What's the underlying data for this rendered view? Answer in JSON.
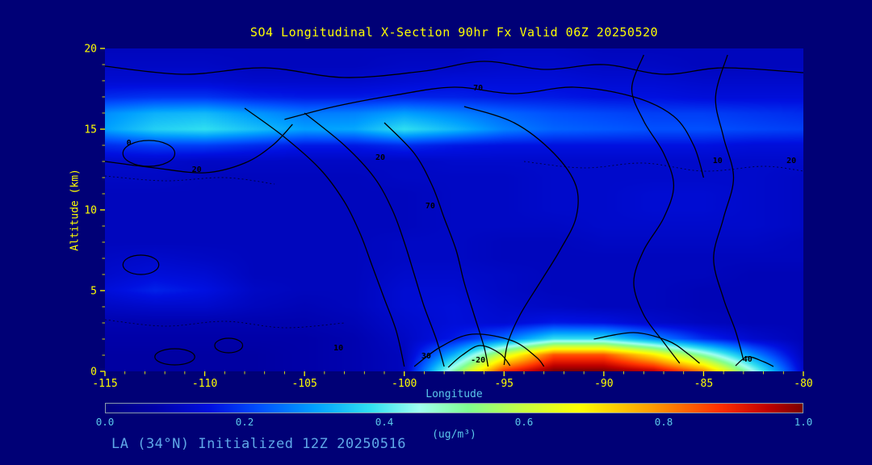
{
  "title": "SO4 Longitudinal X-Section 90hr  Fx Valid 06Z 20250520",
  "footer": "LA (34°N) Initialized 12Z 20250516",
  "axes": {
    "x": {
      "label": "Longitude",
      "min": -115,
      "max": -80,
      "ticks": [
        -115,
        -110,
        -105,
        -100,
        -95,
        -90,
        -85,
        -80
      ],
      "minor_step": 1
    },
    "y": {
      "label": "Altitude (km)",
      "min": 0,
      "max": 20,
      "ticks": [
        0,
        5,
        10,
        15,
        20
      ],
      "minor_step": 1
    }
  },
  "colorbar": {
    "label": "(ug/m³)",
    "ticks": [
      "0.0",
      "0.2",
      "0.4",
      "0.6",
      "0.8",
      "1.0"
    ],
    "min": 0.0,
    "max": 1.0
  },
  "colors": {
    "background": "#000076",
    "title_text": "#FFFF00",
    "axis_text": "#FFFF00",
    "cyan_text": "#5BC8EA",
    "footer_text": "#5FA8E8",
    "contour": "#000000"
  },
  "chart_data": {
    "type": "heatmap",
    "title": "SO4 Longitudinal X-Section 90hr  Fx Valid 06Z 20250520",
    "xlabel": "Longitude",
    "ylabel": "Altitude (km)",
    "unit": "(ug/m³)",
    "x_range": [
      -115,
      -80
    ],
    "y_range": [
      0,
      20
    ],
    "value_range": [
      0,
      1
    ],
    "x": [
      -115,
      -112.5,
      -110,
      -107.5,
      -105,
      -102.5,
      -100,
      -97.5,
      -95,
      -92.5,
      -90,
      -87.5,
      -85,
      -82.5,
      -80
    ],
    "y": [
      0,
      1,
      2,
      3,
      4,
      5,
      6,
      7,
      8,
      9,
      10,
      11,
      12,
      13,
      14,
      15,
      16,
      17,
      18,
      19,
      20
    ],
    "row_order": "bottom-to-top",
    "values": [
      [
        0.06,
        0.06,
        0.06,
        0.06,
        0.07,
        0.08,
        0.1,
        0.5,
        0.88,
        1.0,
        1.0,
        0.95,
        0.8,
        0.45,
        0.12
      ],
      [
        0.06,
        0.06,
        0.06,
        0.06,
        0.07,
        0.08,
        0.1,
        0.32,
        0.62,
        0.85,
        0.85,
        0.7,
        0.5,
        0.28,
        0.1
      ],
      [
        0.07,
        0.07,
        0.07,
        0.07,
        0.07,
        0.08,
        0.11,
        0.16,
        0.25,
        0.38,
        0.38,
        0.28,
        0.18,
        0.12,
        0.09
      ],
      [
        0.08,
        0.08,
        0.08,
        0.08,
        0.08,
        0.09,
        0.12,
        0.14,
        0.13,
        0.16,
        0.15,
        0.12,
        0.1,
        0.09,
        0.09
      ],
      [
        0.11,
        0.12,
        0.12,
        0.1,
        0.09,
        0.1,
        0.13,
        0.14,
        0.12,
        0.11,
        0.1,
        0.1,
        0.09,
        0.09,
        0.09
      ],
      [
        0.14,
        0.17,
        0.15,
        0.11,
        0.1,
        0.1,
        0.13,
        0.13,
        0.11,
        0.1,
        0.1,
        0.1,
        0.09,
        0.09,
        0.09
      ],
      [
        0.12,
        0.14,
        0.13,
        0.1,
        0.1,
        0.1,
        0.12,
        0.12,
        0.11,
        0.1,
        0.1,
        0.1,
        0.1,
        0.09,
        0.09
      ],
      [
        0.11,
        0.12,
        0.11,
        0.1,
        0.1,
        0.1,
        0.11,
        0.11,
        0.1,
        0.1,
        0.1,
        0.1,
        0.1,
        0.1,
        0.1
      ],
      [
        0.1,
        0.1,
        0.1,
        0.1,
        0.1,
        0.1,
        0.11,
        0.11,
        0.1,
        0.1,
        0.11,
        0.11,
        0.11,
        0.11,
        0.1
      ],
      [
        0.1,
        0.1,
        0.1,
        0.1,
        0.1,
        0.1,
        0.1,
        0.11,
        0.11,
        0.11,
        0.12,
        0.12,
        0.12,
        0.12,
        0.11
      ],
      [
        0.1,
        0.1,
        0.1,
        0.1,
        0.1,
        0.1,
        0.1,
        0.11,
        0.11,
        0.12,
        0.12,
        0.13,
        0.13,
        0.12,
        0.11
      ],
      [
        0.1,
        0.1,
        0.1,
        0.1,
        0.1,
        0.1,
        0.1,
        0.11,
        0.11,
        0.12,
        0.12,
        0.13,
        0.13,
        0.12,
        0.11
      ],
      [
        0.11,
        0.11,
        0.1,
        0.1,
        0.1,
        0.1,
        0.11,
        0.11,
        0.11,
        0.12,
        0.12,
        0.12,
        0.12,
        0.12,
        0.11
      ],
      [
        0.12,
        0.12,
        0.11,
        0.11,
        0.11,
        0.11,
        0.11,
        0.12,
        0.12,
        0.12,
        0.12,
        0.12,
        0.12,
        0.12,
        0.12
      ],
      [
        0.18,
        0.2,
        0.2,
        0.18,
        0.16,
        0.16,
        0.18,
        0.16,
        0.15,
        0.15,
        0.15,
        0.15,
        0.15,
        0.14,
        0.14
      ],
      [
        0.3,
        0.36,
        0.38,
        0.34,
        0.3,
        0.31,
        0.38,
        0.33,
        0.27,
        0.24,
        0.23,
        0.22,
        0.22,
        0.21,
        0.2
      ],
      [
        0.28,
        0.32,
        0.33,
        0.29,
        0.26,
        0.27,
        0.3,
        0.27,
        0.24,
        0.22,
        0.21,
        0.2,
        0.2,
        0.19,
        0.18
      ],
      [
        0.18,
        0.19,
        0.19,
        0.17,
        0.16,
        0.16,
        0.17,
        0.17,
        0.16,
        0.16,
        0.15,
        0.15,
        0.14,
        0.14,
        0.14
      ],
      [
        0.13,
        0.13,
        0.13,
        0.12,
        0.12,
        0.12,
        0.13,
        0.14,
        0.14,
        0.14,
        0.13,
        0.13,
        0.12,
        0.12,
        0.12
      ],
      [
        0.11,
        0.11,
        0.11,
        0.1,
        0.1,
        0.1,
        0.11,
        0.11,
        0.12,
        0.12,
        0.11,
        0.11,
        0.1,
        0.1,
        0.1
      ],
      [
        0.1,
        0.1,
        0.1,
        0.1,
        0.1,
        0.1,
        0.1,
        0.1,
        0.11,
        0.11,
        0.1,
        0.1,
        0.1,
        0.1,
        0.1
      ]
    ],
    "colormap": [
      {
        "v": 0.0,
        "c": "#000080"
      },
      {
        "v": 0.07,
        "c": "#0000A8"
      },
      {
        "v": 0.15,
        "c": "#0010E0"
      },
      {
        "v": 0.22,
        "c": "#0050FF"
      },
      {
        "v": 0.3,
        "c": "#00A0FF"
      },
      {
        "v": 0.38,
        "c": "#30E0F0"
      },
      {
        "v": 0.45,
        "c": "#A0FFF0"
      },
      {
        "v": 0.52,
        "c": "#80FF90"
      },
      {
        "v": 0.6,
        "c": "#C8FF40"
      },
      {
        "v": 0.68,
        "c": "#FFFF00"
      },
      {
        "v": 0.78,
        "c": "#FFA000"
      },
      {
        "v": 0.88,
        "c": "#FF3000"
      },
      {
        "v": 0.95,
        "c": "#C00000"
      },
      {
        "v": 1.0,
        "c": "#7A0000"
      }
    ],
    "contour_levels_visible": [
      -20,
      0,
      10,
      20,
      30,
      40,
      70
    ],
    "contour_labels": [
      {
        "text": "0",
        "lon": -113.8,
        "alt": 14.0
      },
      {
        "text": "20",
        "lon": -110.4,
        "alt": 12.35
      },
      {
        "text": "70",
        "lon": -96.3,
        "alt": 17.4
      },
      {
        "text": "20",
        "lon": -101.2,
        "alt": 13.1
      },
      {
        "text": "70",
        "lon": -98.7,
        "alt": 10.1
      },
      {
        "text": "10",
        "lon": -103.3,
        "alt": 1.3
      },
      {
        "text": "30",
        "lon": -98.9,
        "alt": 0.8
      },
      {
        "text": "-20",
        "lon": -96.3,
        "alt": 0.55
      },
      {
        "text": "10",
        "lon": -84.3,
        "alt": 12.9
      },
      {
        "text": "20",
        "lon": -80.6,
        "alt": 12.9
      },
      {
        "text": "40",
        "lon": -82.8,
        "alt": 0.6
      }
    ]
  }
}
